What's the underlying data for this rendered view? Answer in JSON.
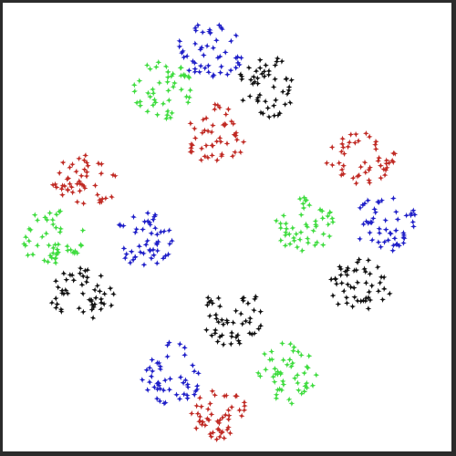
{
  "chart_data": {
    "type": "scatter",
    "title": "",
    "xlabel": "",
    "ylabel": "",
    "xlim": [
      0,
      100
    ],
    "ylim": [
      0,
      100
    ],
    "grid": false,
    "legend": "none",
    "axes_visible": false,
    "marker": "star",
    "colors": {
      "blue": "#1f1fc8",
      "black": "#111111",
      "red": "#c02a24",
      "green": "#3fdc3f"
    },
    "groups": [
      {
        "name": "top",
        "clusters": [
          {
            "color": "blue",
            "center": [
              46,
              90
            ],
            "spread": [
              7.5,
              6.5
            ],
            "count": 50
          },
          {
            "color": "black",
            "center": [
              59,
              82
            ],
            "spread": [
              7.0,
              7.5
            ],
            "count": 50
          },
          {
            "color": "green",
            "center": [
              35,
              81
            ],
            "spread": [
              7.0,
              7.0
            ],
            "count": 50
          },
          {
            "color": "red",
            "center": [
              47,
              71
            ],
            "spread": [
              7.0,
              7.0
            ],
            "count": 50
          }
        ]
      },
      {
        "name": "left",
        "clusters": [
          {
            "color": "red",
            "center": [
              18,
              61
            ],
            "spread": [
              8.0,
              6.0
            ],
            "count": 50
          },
          {
            "color": "green",
            "center": [
              10,
              48
            ],
            "spread": [
              7.5,
              6.5
            ],
            "count": 50
          },
          {
            "color": "blue",
            "center": [
              31,
              47
            ],
            "spread": [
              7.0,
              7.0
            ],
            "count": 50
          },
          {
            "color": "black",
            "center": [
              17,
              35
            ],
            "spread": [
              7.5,
              6.0
            ],
            "count": 50
          }
        ]
      },
      {
        "name": "right",
        "clusters": [
          {
            "color": "red",
            "center": [
              80,
              66
            ],
            "spread": [
              8.0,
              6.0
            ],
            "count": 50
          },
          {
            "color": "green",
            "center": [
              67,
              51
            ],
            "spread": [
              7.0,
              6.5
            ],
            "count": 50
          },
          {
            "color": "blue",
            "center": [
              86,
              51
            ],
            "spread": [
              7.5,
              6.5
            ],
            "count": 50
          },
          {
            "color": "black",
            "center": [
              80,
              37
            ],
            "spread": [
              7.5,
              6.0
            ],
            "count": 50
          }
        ]
      },
      {
        "name": "bottom",
        "clusters": [
          {
            "color": "black",
            "center": [
              51,
              30
            ],
            "spread": [
              7.0,
              7.0
            ],
            "count": 50
          },
          {
            "color": "green",
            "center": [
              63,
              17
            ],
            "spread": [
              7.0,
              7.0
            ],
            "count": 50
          },
          {
            "color": "blue",
            "center": [
              37,
              17
            ],
            "spread": [
              7.0,
              7.5
            ],
            "count": 50
          },
          {
            "color": "red",
            "center": [
              48,
              8
            ],
            "spread": [
              7.0,
              6.0
            ],
            "count": 50
          }
        ]
      }
    ]
  }
}
